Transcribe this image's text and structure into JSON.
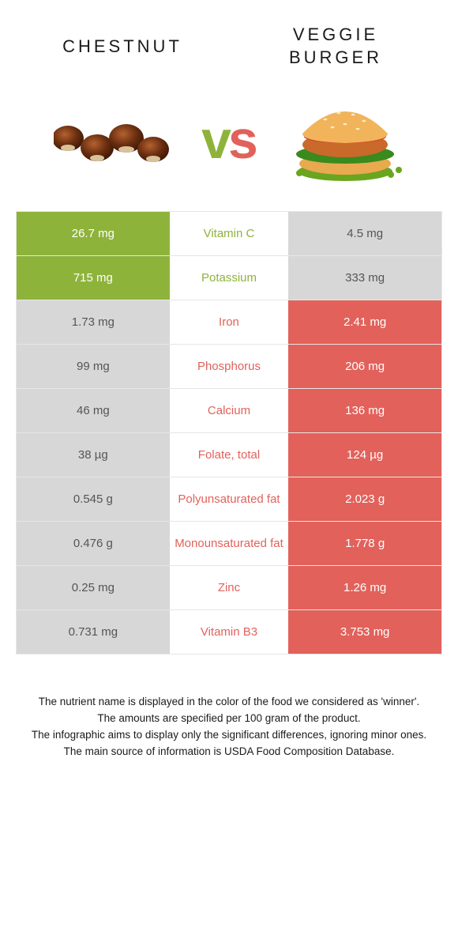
{
  "colors": {
    "left": "#8eb33b",
    "right": "#e2615b",
    "neutral": "#d7d7d7",
    "neutral_text": "#555555",
    "white": "#ffffff"
  },
  "titles": {
    "left": "Chestnut",
    "right_line1": "Veggie",
    "right_line2": "burger"
  },
  "vs": {
    "v": "v",
    "s": "s"
  },
  "rows": [
    {
      "label": "Vitamin C",
      "left": "26.7 mg",
      "right": "4.5 mg",
      "winner": "left"
    },
    {
      "label": "Potassium",
      "left": "715 mg",
      "right": "333 mg",
      "winner": "left"
    },
    {
      "label": "Iron",
      "left": "1.73 mg",
      "right": "2.41 mg",
      "winner": "right"
    },
    {
      "label": "Phosphorus",
      "left": "99 mg",
      "right": "206 mg",
      "winner": "right"
    },
    {
      "label": "Calcium",
      "left": "46 mg",
      "right": "136 mg",
      "winner": "right"
    },
    {
      "label": "Folate, total",
      "left": "38 µg",
      "right": "124 µg",
      "winner": "right"
    },
    {
      "label": "Polyunsaturated fat",
      "left": "0.545 g",
      "right": "2.023 g",
      "winner": "right"
    },
    {
      "label": "Monounsaturated fat",
      "left": "0.476 g",
      "right": "1.778 g",
      "winner": "right"
    },
    {
      "label": "Zinc",
      "left": "0.25 mg",
      "right": "1.26 mg",
      "winner": "right"
    },
    {
      "label": "Vitamin B3",
      "left": "0.731 mg",
      "right": "3.753 mg",
      "winner": "right"
    }
  ],
  "footer": {
    "line1": "The nutrient name is displayed in the color of the food we considered as 'winner'.",
    "line2": "The amounts are specified per 100 gram of the product.",
    "line3": "The infographic aims to display only the significant differences, ignoring minor ones.",
    "line4": "The main source of information is USDA Food Composition Database."
  }
}
